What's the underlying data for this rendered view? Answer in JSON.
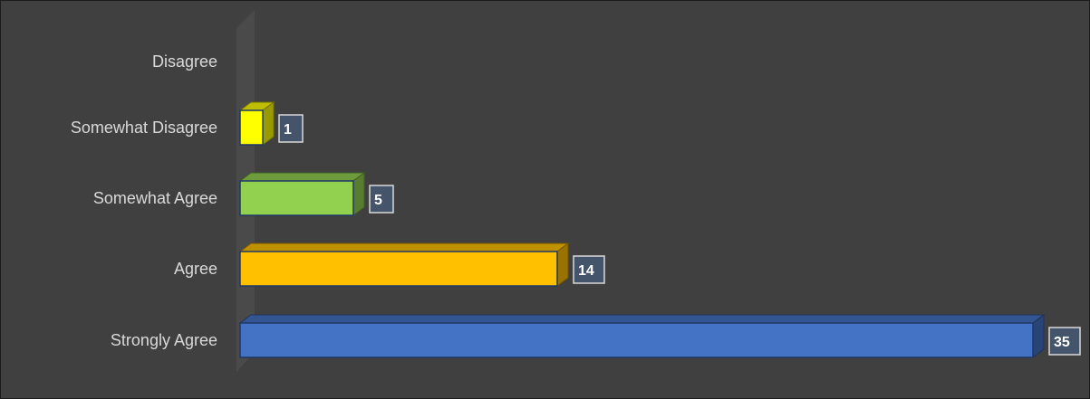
{
  "chart_data": {
    "type": "bar",
    "orientation": "horizontal",
    "style": "3d",
    "title": "",
    "xlabel": "",
    "ylabel": "",
    "categories": [
      "Disagree",
      "Somewhat Disagree",
      "Somewhat Agree",
      "Agree",
      "Strongly Agree"
    ],
    "values": [
      0,
      1,
      5,
      14,
      35
    ],
    "data_labels": [
      "",
      "1",
      "5",
      "14",
      "35"
    ],
    "colors": [
      "#7f7f7f",
      "#ffff00",
      "#92d050",
      "#ffc000",
      "#4472c4"
    ],
    "xlim": [
      0,
      35
    ],
    "grid": false,
    "legend": "none",
    "background": "#404040"
  }
}
